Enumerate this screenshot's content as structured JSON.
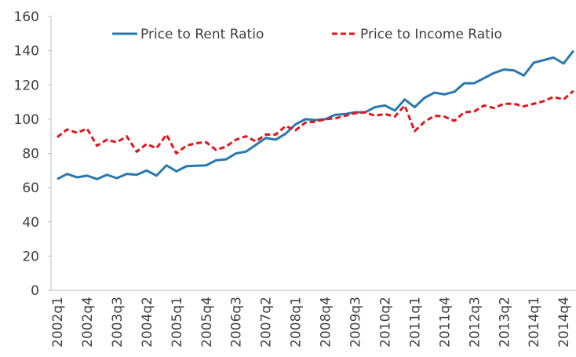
{
  "chart_data": {
    "type": "line",
    "categories": [
      "2002q1",
      null,
      null,
      "2002q4",
      null,
      null,
      "2003q3",
      null,
      null,
      "2004q2",
      null,
      null,
      "2005q1",
      null,
      null,
      "2005q4",
      null,
      null,
      "2006q3",
      null,
      null,
      "2007q2",
      null,
      null,
      "2008q1",
      null,
      null,
      "2008q4",
      null,
      null,
      "2009q3",
      null,
      null,
      "2010q2",
      null,
      null,
      "2011q1",
      null,
      null,
      "2011q4",
      null,
      null,
      "2012q3",
      null,
      null,
      "2013q2",
      null,
      null,
      "2014q1",
      null,
      null,
      "2014q4",
      null
    ],
    "series": [
      {
        "name": "Price to Rent Ratio",
        "color": "#2878ad",
        "dashed": false,
        "values": [
          65,
          68,
          66,
          67,
          65,
          67.5,
          65.5,
          68,
          67.5,
          70,
          67,
          73,
          69.5,
          72.5,
          72.8,
          73,
          76,
          76.5,
          80,
          81,
          85,
          89,
          88,
          91.5,
          97,
          100,
          99.5,
          100,
          102.5,
          103,
          104,
          104,
          107,
          108,
          105,
          111.5,
          107,
          112.5,
          115.5,
          114.5,
          116,
          121,
          121,
          124,
          127,
          129,
          128.5,
          125.5,
          133,
          134.5,
          136,
          132.5,
          140
        ]
      },
      {
        "name": "Price to Income Ratio",
        "color": "#e3141c",
        "dashed": true,
        "values": [
          89.5,
          94,
          92,
          94.5,
          84.5,
          88,
          86.5,
          90,
          81,
          85.5,
          83,
          91,
          80,
          84.5,
          86,
          86.5,
          82,
          84,
          88,
          90,
          87,
          91,
          91,
          96,
          93.5,
          98,
          98.5,
          100,
          100.5,
          102,
          103.5,
          104,
          102,
          103,
          101.5,
          108,
          93,
          98.5,
          102,
          101.5,
          99,
          104,
          104.5,
          108,
          106.5,
          109,
          109,
          107.5,
          109,
          110.5,
          113,
          111.5,
          116.5
        ]
      }
    ],
    "ylim": [
      0,
      160
    ],
    "yticks": [
      0,
      20,
      40,
      60,
      80,
      100,
      120,
      140,
      160
    ]
  }
}
